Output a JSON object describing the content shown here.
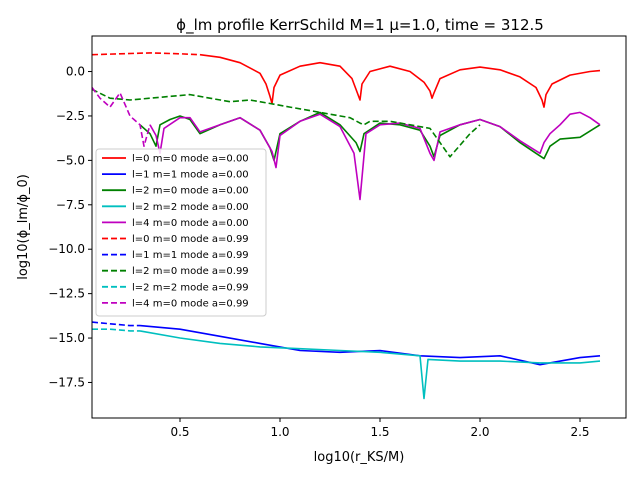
{
  "chart_data": {
    "type": "line",
    "title": "ϕ_lm profile KerrSchild M=1 μ=1.0, time = 312.5",
    "xlabel": "log10(r_KS/M)",
    "ylabel": "log10(ϕ_lm/ϕ_0)",
    "xlim": [
      0.06,
      2.73
    ],
    "ylim": [
      -19.5,
      2.0
    ],
    "xticks": [
      0.5,
      1.0,
      1.5,
      2.0,
      2.5
    ],
    "xtick_labels": [
      "0.5",
      "1.0",
      "1.5",
      "2.0",
      "2.5"
    ],
    "yticks": [
      0.0,
      -2.5,
      -5.0,
      -7.5,
      -10.0,
      -12.5,
      -15.0,
      -17.5
    ],
    "ytick_labels": [
      "0.0",
      "−2.5",
      "−5.0",
      "−7.5",
      "−10.0",
      "−12.5",
      "−15.0",
      "−17.5"
    ],
    "grid": false,
    "legend_position": "center-left",
    "series": [
      {
        "name": "l=0 m=0 mode a=0.00",
        "color": "#ff0000",
        "style": "solid",
        "x": [
          0.6,
          0.7,
          0.8,
          0.9,
          0.93,
          0.95,
          0.96,
          0.97,
          1.0,
          1.1,
          1.2,
          1.3,
          1.36,
          1.39,
          1.4,
          1.41,
          1.45,
          1.55,
          1.65,
          1.72,
          1.75,
          1.76,
          1.77,
          1.8,
          1.9,
          2.0,
          2.1,
          2.2,
          2.28,
          2.31,
          2.32,
          2.33,
          2.36,
          2.45,
          2.55,
          2.6
        ],
        "y": [
          0.95,
          0.8,
          0.5,
          -0.1,
          -0.7,
          -1.4,
          -1.8,
          -0.9,
          -0.2,
          0.3,
          0.5,
          0.3,
          -0.4,
          -1.3,
          -1.6,
          -0.7,
          0.0,
          0.3,
          0.0,
          -0.6,
          -1.1,
          -1.5,
          -1.2,
          -0.4,
          0.1,
          0.25,
          0.1,
          -0.3,
          -0.9,
          -1.6,
          -2.0,
          -1.3,
          -0.7,
          -0.2,
          0.0,
          0.05
        ]
      },
      {
        "name": "l=1 m=1 mode a=0.00",
        "color": "#0000ff",
        "style": "solid",
        "x": [
          0.3,
          0.5,
          0.7,
          0.9,
          1.1,
          1.3,
          1.5,
          1.7,
          1.9,
          2.1,
          2.3,
          2.5,
          2.6
        ],
        "y": [
          -14.3,
          -14.5,
          -14.9,
          -15.3,
          -15.7,
          -15.8,
          -15.7,
          -16.0,
          -16.1,
          -16.0,
          -16.5,
          -16.1,
          -16.0
        ]
      },
      {
        "name": "l=2 m=0 mode a=0.00",
        "color": "#008000",
        "style": "solid",
        "x": [
          0.3,
          0.35,
          0.38,
          0.4,
          0.45,
          0.5,
          0.55,
          0.6,
          0.7,
          0.8,
          0.9,
          0.95,
          0.97,
          1.0,
          1.1,
          1.2,
          1.3,
          1.38,
          1.4,
          1.42,
          1.5,
          1.6,
          1.7,
          1.75,
          1.77,
          1.8,
          1.9,
          2.0,
          2.1,
          2.2,
          2.28,
          2.32,
          2.35,
          2.4,
          2.5,
          2.6
        ],
        "y": [
          -3.0,
          -3.5,
          -4.2,
          -3.0,
          -2.7,
          -2.5,
          -2.7,
          -3.5,
          -3.0,
          -2.6,
          -3.3,
          -4.3,
          -5.0,
          -3.5,
          -2.8,
          -2.3,
          -3.0,
          -4.0,
          -4.5,
          -3.5,
          -2.9,
          -3.0,
          -3.3,
          -4.2,
          -4.8,
          -3.6,
          -3.0,
          -2.7,
          -3.1,
          -4.0,
          -4.6,
          -4.9,
          -4.2,
          -3.8,
          -3.7,
          -3.0
        ]
      },
      {
        "name": "l=2 m=2 mode a=0.00",
        "color": "#00bfbf",
        "style": "solid",
        "x": [
          0.3,
          0.5,
          0.7,
          0.9,
          1.1,
          1.3,
          1.5,
          1.7,
          1.72,
          1.74,
          1.9,
          2.1,
          2.3,
          2.5,
          2.6
        ],
        "y": [
          -14.6,
          -15.0,
          -15.3,
          -15.5,
          -15.6,
          -15.7,
          -15.8,
          -16.0,
          -18.4,
          -16.2,
          -16.3,
          -16.3,
          -16.4,
          -16.4,
          -16.3
        ]
      },
      {
        "name": "l=4 m=0 mode a=0.00",
        "color": "#bf00bf",
        "style": "solid",
        "x": [
          0.35,
          0.38,
          0.4,
          0.42,
          0.5,
          0.55,
          0.6,
          0.7,
          0.8,
          0.9,
          0.96,
          0.98,
          1.0,
          1.1,
          1.2,
          1.3,
          1.37,
          1.4,
          1.43,
          1.5,
          1.6,
          1.7,
          1.75,
          1.77,
          1.8,
          1.9,
          2.0,
          2.1,
          2.2,
          2.3,
          2.32,
          2.35,
          2.4,
          2.45,
          2.5,
          2.55,
          2.6
        ],
        "y": [
          -3.0,
          -3.6,
          -4.6,
          -3.2,
          -2.6,
          -2.6,
          -3.4,
          -3.0,
          -2.6,
          -3.3,
          -4.5,
          -5.4,
          -3.6,
          -2.8,
          -2.4,
          -3.1,
          -4.6,
          -7.2,
          -3.5,
          -3.0,
          -2.9,
          -3.2,
          -4.6,
          -5.0,
          -3.4,
          -3.0,
          -2.7,
          -3.1,
          -3.9,
          -4.6,
          -4.0,
          -3.5,
          -3.0,
          -2.4,
          -2.3,
          -2.6,
          -3.0
        ]
      },
      {
        "name": "l=0 m=0 mode a=0.99",
        "color": "#ff0000",
        "style": "dashed",
        "x": [
          0.06,
          0.2,
          0.35,
          0.5,
          0.6
        ],
        "y": [
          0.95,
          1.0,
          1.05,
          1.0,
          0.95
        ]
      },
      {
        "name": "l=1 m=1 mode a=0.99",
        "color": "#0000ff",
        "style": "dashed",
        "x": [
          0.06,
          0.15,
          0.25,
          0.3
        ],
        "y": [
          -14.1,
          -14.2,
          -14.3,
          -14.3
        ]
      },
      {
        "name": "l=2 m=0 mode a=0.99",
        "color": "#008000",
        "style": "dashed",
        "x": [
          0.06,
          0.15,
          0.25,
          0.35,
          0.45,
          0.55,
          0.65,
          0.75,
          0.85,
          0.95,
          1.05,
          1.15,
          1.25,
          1.35,
          1.4,
          1.42,
          1.45,
          1.55,
          1.65,
          1.75,
          1.85,
          1.95,
          2.0
        ],
        "y": [
          -1.0,
          -1.5,
          -1.6,
          -1.5,
          -1.4,
          -1.3,
          -1.5,
          -1.7,
          -1.6,
          -1.8,
          -2.0,
          -2.2,
          -2.4,
          -2.6,
          -2.9,
          -3.0,
          -2.8,
          -2.8,
          -3.0,
          -3.2,
          -4.8,
          -3.5,
          -3.0
        ]
      },
      {
        "name": "l=2 m=2 mode a=0.99",
        "color": "#00bfbf",
        "style": "dashed",
        "x": [
          0.06,
          0.15,
          0.25,
          0.3
        ],
        "y": [
          -14.5,
          -14.5,
          -14.6,
          -14.6
        ]
      },
      {
        "name": "l=4 m=0 mode a=0.99",
        "color": "#bf00bf",
        "style": "dashed",
        "x": [
          0.06,
          0.1,
          0.15,
          0.2,
          0.25,
          0.3,
          0.32,
          0.35
        ],
        "y": [
          -0.9,
          -1.5,
          -2.0,
          -1.2,
          -2.5,
          -3.0,
          -4.2,
          -3.0
        ]
      }
    ]
  }
}
